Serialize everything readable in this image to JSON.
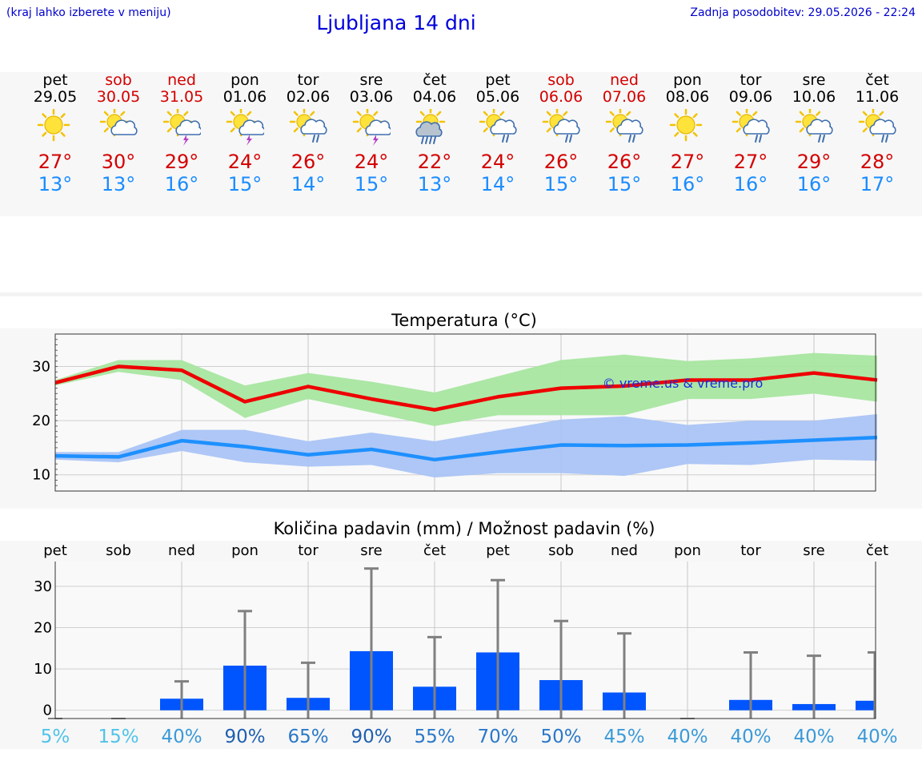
{
  "header": {
    "hint": "(kraj lahko izberete v meniju)",
    "title": "Ljubljana 14 dni",
    "updated": "Zadnja posodobitev: 29.05.2026 - 22:24"
  },
  "days": [
    {
      "name": "pet",
      "date": "29.05",
      "weekend": false,
      "icon": "sun",
      "tmax": "27°",
      "tmin": "13°"
    },
    {
      "name": "sob",
      "date": "30.05",
      "weekend": true,
      "icon": "sun-cloud",
      "tmax": "30°",
      "tmin": "13°"
    },
    {
      "name": "ned",
      "date": "31.05",
      "weekend": true,
      "icon": "sun-cloud-thunder",
      "tmax": "29°",
      "tmin": "16°"
    },
    {
      "name": "pon",
      "date": "01.06",
      "weekend": false,
      "icon": "sun-cloud-thunder",
      "tmax": "24°",
      "tmin": "15°"
    },
    {
      "name": "tor",
      "date": "02.06",
      "weekend": false,
      "icon": "sun-cloud-rain",
      "tmax": "26°",
      "tmin": "14°"
    },
    {
      "name": "sre",
      "date": "03.06",
      "weekend": false,
      "icon": "sun-cloud-thunder",
      "tmax": "24°",
      "tmin": "15°"
    },
    {
      "name": "čet",
      "date": "04.06",
      "weekend": false,
      "icon": "sun-cloud-heavy-rain",
      "tmax": "22°",
      "tmin": "13°"
    },
    {
      "name": "pet",
      "date": "05.06",
      "weekend": false,
      "icon": "sun-cloud-rain",
      "tmax": "24°",
      "tmin": "14°"
    },
    {
      "name": "sob",
      "date": "06.06",
      "weekend": true,
      "icon": "sun-cloud-rain",
      "tmax": "26°",
      "tmin": "15°"
    },
    {
      "name": "ned",
      "date": "07.06",
      "weekend": true,
      "icon": "sun-cloud-rain",
      "tmax": "26°",
      "tmin": "15°"
    },
    {
      "name": "pon",
      "date": "08.06",
      "weekend": false,
      "icon": "sun",
      "tmax": "27°",
      "tmin": "16°"
    },
    {
      "name": "tor",
      "date": "09.06",
      "weekend": false,
      "icon": "sun-cloud-rain",
      "tmax": "27°",
      "tmin": "16°"
    },
    {
      "name": "sre",
      "date": "10.06",
      "weekend": false,
      "icon": "sun-cloud-rain",
      "tmax": "29°",
      "tmin": "16°"
    },
    {
      "name": "čet",
      "date": "11.06",
      "weekend": false,
      "icon": "sun-cloud-rain",
      "tmax": "28°",
      "tmin": "17°"
    }
  ],
  "colors": {
    "max": "#ee0000",
    "min": "#1e90ff",
    "maxBand": "#a8e6a0",
    "minBand": "#aac4f5",
    "bar": "#0055ff",
    "whisker": "#808080",
    "weekend": "#d40000"
  },
  "chart_data": [
    {
      "type": "line",
      "title": "Temperatura (°C)",
      "watermark": "© vreme.us & vreme.pro",
      "x": [
        0,
        1,
        2,
        3,
        4,
        5,
        6,
        7,
        8,
        9,
        10,
        11,
        12,
        13
      ],
      "ylim": [
        7,
        36
      ],
      "yticks": [
        10,
        20,
        30
      ],
      "grid": true,
      "series": [
        {
          "values": [
            27,
            30,
            29.3,
            23.5,
            26.3,
            24,
            22,
            24.4,
            26,
            26.4,
            27.5,
            27.5,
            28.8,
            27.5
          ]
        },
        {
          "values": [
            13.5,
            13.3,
            16.3,
            15.2,
            13.7,
            14.7,
            12.8,
            14.2,
            15.5,
            15.4,
            15.5,
            15.9,
            16.4,
            16.9
          ]
        }
      ],
      "bands": [
        {
          "low": [
            26.5,
            29,
            27.5,
            20.5,
            24,
            21.5,
            19,
            21,
            21,
            21,
            24,
            24,
            25,
            23.5
          ],
          "high": [
            27.5,
            31.2,
            31.2,
            26.5,
            28.8,
            27.2,
            25.2,
            28.2,
            31.2,
            32.2,
            31,
            31.5,
            32.5,
            32
          ]
        },
        {
          "low": [
            12.8,
            12.3,
            14.4,
            12.3,
            11.5,
            11.8,
            9.5,
            10.3,
            10.3,
            9.8,
            12,
            11.8,
            12.8,
            12.6
          ],
          "high": [
            14.2,
            14.2,
            18.3,
            18.3,
            16.2,
            17.8,
            16.2,
            18.2,
            20.2,
            20.8,
            19.2,
            20,
            20,
            21.2
          ]
        }
      ]
    },
    {
      "type": "bar",
      "title": "Količina padavin (mm) / Možnost padavin (%)",
      "categories": [
        "pet",
        "sob",
        "ned",
        "pon",
        "tor",
        "sre",
        "čet",
        "pet",
        "sob",
        "ned",
        "pon",
        "tor",
        "sre",
        "čet"
      ],
      "values": [
        0,
        0,
        2.8,
        10.8,
        3,
        14.3,
        5.7,
        14,
        7.3,
        4.3,
        0,
        2.5,
        1.5,
        2.3
      ],
      "max": [
        0,
        0,
        7,
        24,
        11.5,
        34.3,
        17.7,
        31.5,
        21.6,
        18.6,
        0,
        14,
        13.2,
        14
      ],
      "probability": [
        "5%",
        "15%",
        "40%",
        "90%",
        "65%",
        "90%",
        "55%",
        "70%",
        "50%",
        "45%",
        "40%",
        "40%",
        "40%",
        "40%"
      ],
      "ylim": [
        -2,
        36
      ],
      "yticks": [
        0,
        10,
        20,
        30
      ],
      "grid": true
    }
  ]
}
